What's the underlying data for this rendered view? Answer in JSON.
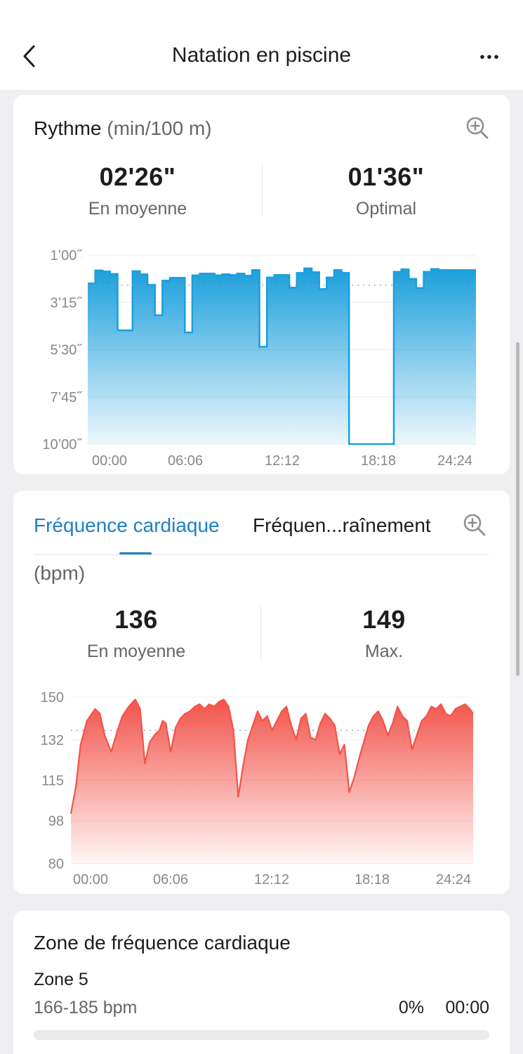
{
  "header": {
    "title": "Natation en piscine",
    "back_icon": "chevron-left-icon",
    "more_icon": "more-horizontal-icon"
  },
  "pace": {
    "title": "Rythme",
    "unit": "(min/100 m)",
    "zoom_icon": "zoom-in-icon",
    "average_value": "02'26\"",
    "average_label": "En moyenne",
    "best_value": "01'36\"",
    "best_label": "Optimal",
    "color": "#1a9fdc"
  },
  "heart_rate": {
    "tabs": [
      "Fréquence cardiaque",
      "Fréquen...raînement"
    ],
    "active_tab": 0,
    "zoom_icon": "zoom-in-icon",
    "unit": "(bpm)",
    "average_value": "136",
    "average_label": "En moyenne",
    "max_value": "149",
    "max_label": "Max.",
    "color": "#f4534a"
  },
  "zone": {
    "title": "Zone de fréquence cardiaque",
    "name": "Zone 5",
    "range": "166-185 bpm",
    "percent": "0%",
    "time": "00:00",
    "fill_fraction": 0
  },
  "chart_data": [
    {
      "type": "area",
      "title": "Rythme (min/100 m)",
      "y_tick_labels": [
        "1’00˝",
        "3’15˝",
        "5’30˝",
        "7’45˝",
        "10’00˝"
      ],
      "y_tick_seconds": [
        60,
        195,
        330,
        465,
        600
      ],
      "y_inverted": true,
      "x_tick_labels": [
        "00:00",
        "06:06",
        "12:12",
        "18:18",
        "24:24"
      ],
      "x_range_minutes": [
        0,
        26.0
      ],
      "average_seconds": 146,
      "x_minutes": [
        0,
        0.5,
        1.0,
        1.5,
        2.0,
        3.0,
        3.5,
        4.0,
        4.5,
        5.0,
        5.5,
        6.5,
        7.0,
        7.5,
        8.5,
        9.0,
        9.5,
        10.0,
        10.5,
        11.0,
        11.5,
        12.0,
        12.5,
        13.5,
        14.0,
        14.5,
        15.0,
        15.5,
        16.0,
        16.5,
        17.0,
        17.5,
        18.0,
        18.5,
        19.0,
        20.5,
        21.0,
        21.5,
        22.0,
        22.5,
        23.0,
        23.5,
        24.0,
        24.5,
        25.0
      ],
      "y_seconds": [
        141,
        104,
        107,
        114,
        275,
        106,
        115,
        145,
        232,
        133,
        125,
        281,
        118,
        113,
        118,
        115,
        117,
        113,
        119,
        103,
        322,
        124,
        117,
        153,
        111,
        98,
        109,
        157,
        124,
        103,
        111,
        600,
        600,
        600,
        600,
        108,
        101,
        128,
        154,
        108,
        100,
        103,
        103,
        103,
        103
      ]
    },
    {
      "type": "area",
      "title": "Fréquence cardiaque (bpm)",
      "y_ticks": [
        150,
        132,
        115,
        98,
        80
      ],
      "x_tick_labels": [
        "00:00",
        "06:06",
        "12:12",
        "18:18",
        "24:24"
      ],
      "x_range_minutes": [
        0,
        25.0
      ],
      "average_bpm": 136,
      "x_minutes": [
        0,
        0.3,
        0.6,
        1.0,
        1.5,
        1.8,
        2.1,
        2.5,
        2.9,
        3.2,
        3.6,
        4.0,
        4.3,
        4.6,
        4.9,
        5.2,
        5.5,
        5.7,
        5.9,
        6.2,
        6.5,
        6.8,
        7.1,
        7.4,
        7.7,
        8.0,
        8.3,
        8.6,
        8.9,
        9.2,
        9.5,
        9.8,
        10.1,
        10.4,
        10.7,
        11.0,
        11.3,
        11.6,
        11.9,
        12.2,
        12.5,
        12.8,
        13.1,
        13.4,
        13.7,
        14.0,
        14.3,
        14.6,
        14.9,
        15.2,
        15.5,
        15.8,
        16.1,
        16.4,
        16.7,
        17.0,
        17.3,
        17.6,
        17.9,
        18.2,
        18.5,
        18.8,
        19.1,
        19.4,
        19.7,
        20.0,
        20.3,
        20.6,
        20.9,
        21.2,
        21.5,
        21.8,
        22.1,
        22.4,
        22.7,
        23.0,
        23.3,
        23.6,
        23.9,
        24.2,
        24.5,
        24.8,
        25.0
      ],
      "y_bpm": [
        101,
        112,
        130,
        140,
        145,
        143,
        134,
        127,
        136,
        142,
        146,
        149,
        145,
        122,
        131,
        134,
        136,
        140,
        139,
        127,
        137,
        141,
        143,
        144,
        146,
        147,
        145,
        147,
        146,
        148,
        149,
        146,
        136,
        108,
        121,
        132,
        138,
        144,
        140,
        142,
        136,
        140,
        144,
        146,
        138,
        132,
        141,
        143,
        133,
        132,
        139,
        143,
        141,
        138,
        126,
        130,
        110,
        116,
        124,
        131,
        138,
        142,
        144,
        140,
        134,
        139,
        146,
        142,
        140,
        128,
        134,
        140,
        142,
        146,
        145,
        147,
        143,
        142,
        145,
        146,
        147,
        145,
        143
      ]
    }
  ]
}
